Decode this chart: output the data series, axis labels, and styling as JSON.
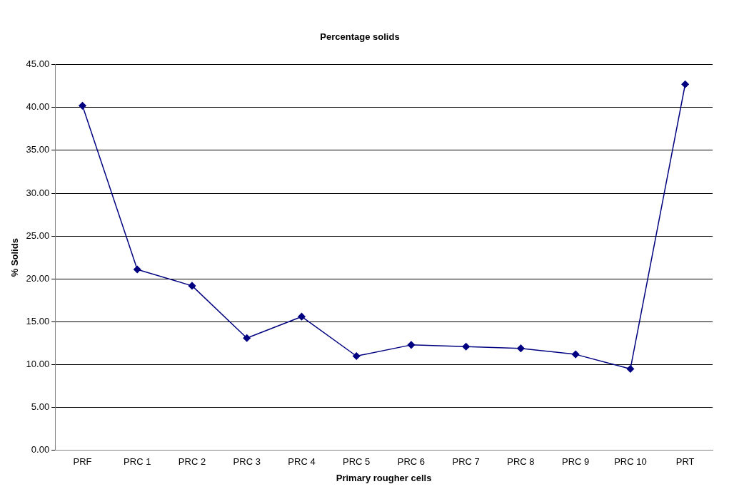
{
  "chart_data": {
    "type": "line",
    "title": "Percentage solids",
    "xlabel": "Primary rougher cells",
    "ylabel": "% Solids",
    "categories": [
      "PRF",
      "PRC 1",
      "PRC 2",
      "PRC 3",
      "PRC 4",
      "PRC 5",
      "PRC 6",
      "PRC 7",
      "PRC 8",
      "PRC 9",
      "PRC 10",
      "PRT"
    ],
    "series": [
      {
        "color": "#000080",
        "values": [
          40.2,
          21.1,
          19.2,
          13.1,
          15.6,
          11.0,
          12.3,
          12.1,
          11.9,
          11.2,
          9.5,
          42.7
        ]
      }
    ],
    "ylim": [
      0,
      45
    ],
    "yticks": [
      {
        "value": 0,
        "label": "0.00"
      },
      {
        "value": 5,
        "label": "5.00"
      },
      {
        "value": 10,
        "label": "10.00"
      },
      {
        "value": 15,
        "label": "15.00"
      },
      {
        "value": 20,
        "label": "20.00"
      },
      {
        "value": 25,
        "label": "25.00"
      },
      {
        "value": 30,
        "label": "30.00"
      },
      {
        "value": 35,
        "label": "35.00"
      },
      {
        "value": 40,
        "label": "40.00"
      },
      {
        "value": 45,
        "label": "45.00"
      }
    ],
    "grid": "y",
    "legend": false,
    "marker": "diamond",
    "line_style": "solid"
  }
}
